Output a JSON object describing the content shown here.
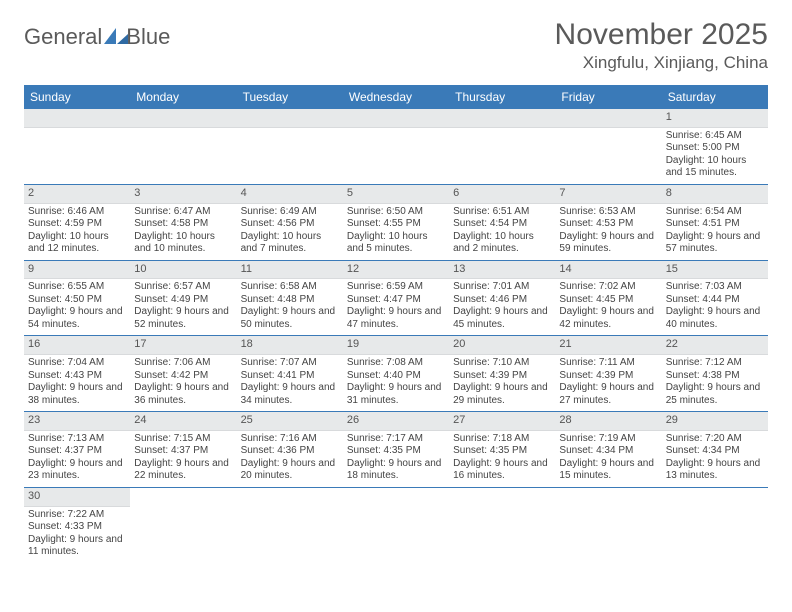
{
  "logo": {
    "word1": "General",
    "word2": "Blue"
  },
  "title": "November 2025",
  "location": "Xingfulu, Xinjiang, China",
  "weekdays": [
    "Sunday",
    "Monday",
    "Tuesday",
    "Wednesday",
    "Thursday",
    "Friday",
    "Saturday"
  ],
  "colors": {
    "header_bg": "#3a7ab8",
    "header_text": "#ffffff",
    "daynum_bg": "#e7e9ea",
    "row_border": "#3a7ab8",
    "body_text": "#444",
    "title_text": "#5a5a5a"
  },
  "weeks": [
    [
      {
        "n": "",
        "sun": "",
        "set": "",
        "day": ""
      },
      {
        "n": "",
        "sun": "",
        "set": "",
        "day": ""
      },
      {
        "n": "",
        "sun": "",
        "set": "",
        "day": ""
      },
      {
        "n": "",
        "sun": "",
        "set": "",
        "day": ""
      },
      {
        "n": "",
        "sun": "",
        "set": "",
        "day": ""
      },
      {
        "n": "",
        "sun": "",
        "set": "",
        "day": ""
      },
      {
        "n": "1",
        "sun": "Sunrise: 6:45 AM",
        "set": "Sunset: 5:00 PM",
        "day": "Daylight: 10 hours and 15 minutes."
      }
    ],
    [
      {
        "n": "2",
        "sun": "Sunrise: 6:46 AM",
        "set": "Sunset: 4:59 PM",
        "day": "Daylight: 10 hours and 12 minutes."
      },
      {
        "n": "3",
        "sun": "Sunrise: 6:47 AM",
        "set": "Sunset: 4:58 PM",
        "day": "Daylight: 10 hours and 10 minutes."
      },
      {
        "n": "4",
        "sun": "Sunrise: 6:49 AM",
        "set": "Sunset: 4:56 PM",
        "day": "Daylight: 10 hours and 7 minutes."
      },
      {
        "n": "5",
        "sun": "Sunrise: 6:50 AM",
        "set": "Sunset: 4:55 PM",
        "day": "Daylight: 10 hours and 5 minutes."
      },
      {
        "n": "6",
        "sun": "Sunrise: 6:51 AM",
        "set": "Sunset: 4:54 PM",
        "day": "Daylight: 10 hours and 2 minutes."
      },
      {
        "n": "7",
        "sun": "Sunrise: 6:53 AM",
        "set": "Sunset: 4:53 PM",
        "day": "Daylight: 9 hours and 59 minutes."
      },
      {
        "n": "8",
        "sun": "Sunrise: 6:54 AM",
        "set": "Sunset: 4:51 PM",
        "day": "Daylight: 9 hours and 57 minutes."
      }
    ],
    [
      {
        "n": "9",
        "sun": "Sunrise: 6:55 AM",
        "set": "Sunset: 4:50 PM",
        "day": "Daylight: 9 hours and 54 minutes."
      },
      {
        "n": "10",
        "sun": "Sunrise: 6:57 AM",
        "set": "Sunset: 4:49 PM",
        "day": "Daylight: 9 hours and 52 minutes."
      },
      {
        "n": "11",
        "sun": "Sunrise: 6:58 AM",
        "set": "Sunset: 4:48 PM",
        "day": "Daylight: 9 hours and 50 minutes."
      },
      {
        "n": "12",
        "sun": "Sunrise: 6:59 AM",
        "set": "Sunset: 4:47 PM",
        "day": "Daylight: 9 hours and 47 minutes."
      },
      {
        "n": "13",
        "sun": "Sunrise: 7:01 AM",
        "set": "Sunset: 4:46 PM",
        "day": "Daylight: 9 hours and 45 minutes."
      },
      {
        "n": "14",
        "sun": "Sunrise: 7:02 AM",
        "set": "Sunset: 4:45 PM",
        "day": "Daylight: 9 hours and 42 minutes."
      },
      {
        "n": "15",
        "sun": "Sunrise: 7:03 AM",
        "set": "Sunset: 4:44 PM",
        "day": "Daylight: 9 hours and 40 minutes."
      }
    ],
    [
      {
        "n": "16",
        "sun": "Sunrise: 7:04 AM",
        "set": "Sunset: 4:43 PM",
        "day": "Daylight: 9 hours and 38 minutes."
      },
      {
        "n": "17",
        "sun": "Sunrise: 7:06 AM",
        "set": "Sunset: 4:42 PM",
        "day": "Daylight: 9 hours and 36 minutes."
      },
      {
        "n": "18",
        "sun": "Sunrise: 7:07 AM",
        "set": "Sunset: 4:41 PM",
        "day": "Daylight: 9 hours and 34 minutes."
      },
      {
        "n": "19",
        "sun": "Sunrise: 7:08 AM",
        "set": "Sunset: 4:40 PM",
        "day": "Daylight: 9 hours and 31 minutes."
      },
      {
        "n": "20",
        "sun": "Sunrise: 7:10 AM",
        "set": "Sunset: 4:39 PM",
        "day": "Daylight: 9 hours and 29 minutes."
      },
      {
        "n": "21",
        "sun": "Sunrise: 7:11 AM",
        "set": "Sunset: 4:39 PM",
        "day": "Daylight: 9 hours and 27 minutes."
      },
      {
        "n": "22",
        "sun": "Sunrise: 7:12 AM",
        "set": "Sunset: 4:38 PM",
        "day": "Daylight: 9 hours and 25 minutes."
      }
    ],
    [
      {
        "n": "23",
        "sun": "Sunrise: 7:13 AM",
        "set": "Sunset: 4:37 PM",
        "day": "Daylight: 9 hours and 23 minutes."
      },
      {
        "n": "24",
        "sun": "Sunrise: 7:15 AM",
        "set": "Sunset: 4:37 PM",
        "day": "Daylight: 9 hours and 22 minutes."
      },
      {
        "n": "25",
        "sun": "Sunrise: 7:16 AM",
        "set": "Sunset: 4:36 PM",
        "day": "Daylight: 9 hours and 20 minutes."
      },
      {
        "n": "26",
        "sun": "Sunrise: 7:17 AM",
        "set": "Sunset: 4:35 PM",
        "day": "Daylight: 9 hours and 18 minutes."
      },
      {
        "n": "27",
        "sun": "Sunrise: 7:18 AM",
        "set": "Sunset: 4:35 PM",
        "day": "Daylight: 9 hours and 16 minutes."
      },
      {
        "n": "28",
        "sun": "Sunrise: 7:19 AM",
        "set": "Sunset: 4:34 PM",
        "day": "Daylight: 9 hours and 15 minutes."
      },
      {
        "n": "29",
        "sun": "Sunrise: 7:20 AM",
        "set": "Sunset: 4:34 PM",
        "day": "Daylight: 9 hours and 13 minutes."
      }
    ],
    [
      {
        "n": "30",
        "sun": "Sunrise: 7:22 AM",
        "set": "Sunset: 4:33 PM",
        "day": "Daylight: 9 hours and 11 minutes."
      },
      {
        "n": "",
        "sun": "",
        "set": "",
        "day": ""
      },
      {
        "n": "",
        "sun": "",
        "set": "",
        "day": ""
      },
      {
        "n": "",
        "sun": "",
        "set": "",
        "day": ""
      },
      {
        "n": "",
        "sun": "",
        "set": "",
        "day": ""
      },
      {
        "n": "",
        "sun": "",
        "set": "",
        "day": ""
      },
      {
        "n": "",
        "sun": "",
        "set": "",
        "day": ""
      }
    ]
  ]
}
